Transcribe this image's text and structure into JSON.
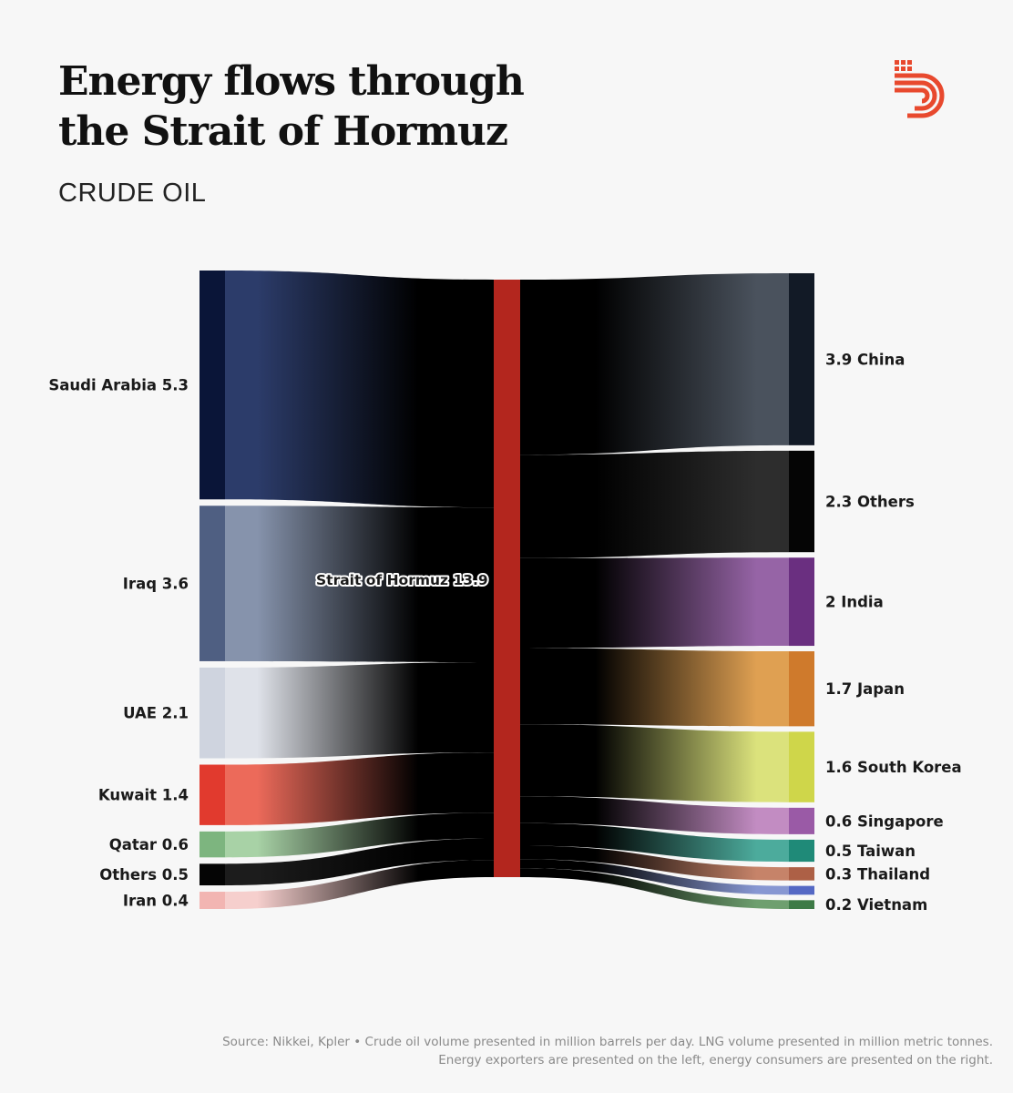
{
  "header": {
    "title_line1": "Energy flows through",
    "title_line2": "the Strait of Hormuz",
    "subtitle": "CRUDE OIL"
  },
  "logo": {
    "icon": "publisher-logo-icon",
    "color": "#e8492e"
  },
  "chart_data": {
    "type": "sankey",
    "title": "Energy flows through the Strait of Hormuz",
    "subtitle": "CRUDE OIL",
    "units": "million barrels per day",
    "hub": {
      "name": "Strait of Hormuz",
      "value": 13.9,
      "label": "Strait of Hormuz 13.9",
      "color": "#b3261e",
      "flow_color": "#cf5a4a"
    },
    "sources": [
      {
        "name": "Saudi Arabia",
        "value": 5.3,
        "label": "Saudi Arabia 5.3",
        "color": "#0a1538",
        "flow": "#2c3c6a"
      },
      {
        "name": "Iraq",
        "value": 3.6,
        "label": "Iraq 3.6",
        "color": "#4f5f82",
        "flow": "#8693ac"
      },
      {
        "name": "UAE",
        "value": 2.1,
        "label": "UAE 2.1",
        "color": "#cfd4df",
        "flow": "#dfe2e9"
      },
      {
        "name": "Kuwait",
        "value": 1.4,
        "label": "Kuwait 1.4",
        "color": "#e13a2e",
        "flow": "#ec6a5a"
      },
      {
        "name": "Qatar",
        "value": 0.6,
        "label": "Qatar 0.6",
        "color": "#7db57f",
        "flow": "#a8d2a6"
      },
      {
        "name": "Others",
        "value": 0.5,
        "label": "Others 0.5",
        "color": "#050505",
        "flow": "#1c1c1c"
      },
      {
        "name": "Iran",
        "value": 0.4,
        "label": "Iran 0.4",
        "color": "#f2b5b2",
        "flow": "#f6cfcd"
      }
    ],
    "targets": [
      {
        "name": "China",
        "value": 3.9,
        "label": "3.9 China",
        "color": "#121a26",
        "flow": "#4a525d"
      },
      {
        "name": "Others",
        "value": 2.3,
        "label": "2.3 Others",
        "color": "#050505",
        "flow": "#2d2d2d"
      },
      {
        "name": "India",
        "value": 2,
        "label": "2 India",
        "color": "#6a2f80",
        "flow": "#9664a6"
      },
      {
        "name": "Japan",
        "value": 1.7,
        "label": "1.7 Japan",
        "color": "#cf7a2c",
        "flow": "#dfa052"
      },
      {
        "name": "South Korea",
        "value": 1.6,
        "label": "1.6 South Korea",
        "color": "#cfd64a",
        "flow": "#dbe27c"
      },
      {
        "name": "Singapore",
        "value": 0.6,
        "label": "0.6 Singapore",
        "color": "#9a5aa6",
        "flow": "#c28cc2"
      },
      {
        "name": "Taiwan",
        "value": 0.5,
        "label": "0.5 Taiwan",
        "color": "#1f8a78",
        "flow": "#4cab9c"
      },
      {
        "name": "Thailand",
        "value": 0.3,
        "label": "0.3 Thailand",
        "color": "#ad6046",
        "flow": "#c68369"
      },
      {
        "name": "Vietnam",
        "value": 0.2,
        "label": "0.2 Vietnam",
        "color": "#3d7a46",
        "flow": "#6e9f6f"
      }
    ],
    "extra_node": {
      "name": "unlabeled",
      "value": 0.2,
      "color": "#5468c4",
      "flow": "#8797d2"
    }
  },
  "source": {
    "line1": "Source: Nikkei, Kpler • Crude oil volume presented in million barrels per day. LNG volume presented in million metric tonnes.",
    "line2": "Energy exporters are presented on the left, energy consumers are presented on the right."
  }
}
